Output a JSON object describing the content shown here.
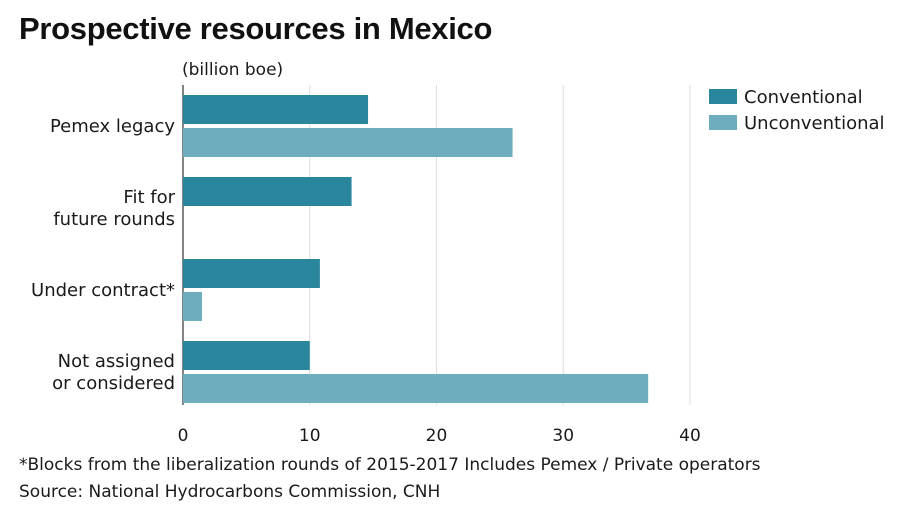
{
  "chart_data": {
    "type": "bar",
    "orientation": "horizontal",
    "title": "Prospective resources in Mexico",
    "unit_label": "(billion boe)",
    "categories": [
      [
        "Pemex legacy"
      ],
      [
        "Fit for",
        "future rounds"
      ],
      [
        "Under contract*"
      ],
      [
        "Not assigned",
        "or considered"
      ]
    ],
    "series": [
      {
        "name": "Conventional",
        "color": "#2a869c",
        "values": [
          14.6,
          13.3,
          10.8,
          10.0
        ]
      },
      {
        "name": "Unconventional",
        "color": "#6dadbe",
        "values": [
          26.0,
          null,
          1.5,
          36.7
        ]
      }
    ],
    "xlim": [
      0,
      40
    ],
    "xticks": [
      "0",
      "10",
      "20",
      "30",
      "40"
    ],
    "grid": true,
    "legend_position": "top-right",
    "footnote": "*Blocks from the liberalization rounds of 2015-2017 Includes Pemex / Private operators",
    "source": "Source: National Hydrocarbons Commission, CNH"
  }
}
